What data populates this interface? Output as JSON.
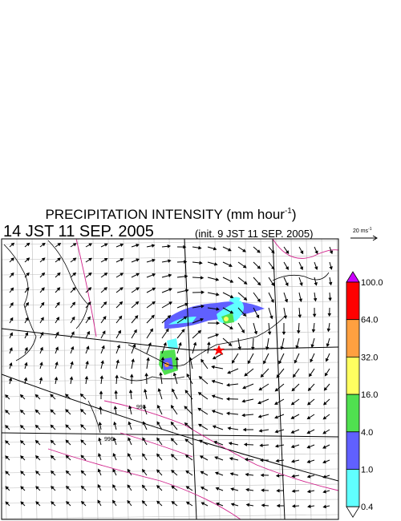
{
  "header": {
    "title": "PRECIPITATION INTENSITY (mm hour",
    "title_superscript": "-1",
    "title_end": ")",
    "time": "14 JST 11 SEP. 2005",
    "init": "(init. 9 JST 11 SEP. 2005)"
  },
  "vector_key": {
    "label": "20 ms",
    "superscript": "-1"
  },
  "colorbar": {
    "over_color": "#cc00ff",
    "under_color": "#ffffff",
    "labels": [
      "100.0",
      "64.0",
      "32.0",
      "16.0",
      "4.0",
      "1.0",
      "0.4"
    ],
    "colors": [
      "#ff0000",
      "#ffa040",
      "#ffff60",
      "#50e050",
      "#6060ff",
      "#60ffff"
    ]
  },
  "contour_labels": [
    "997",
    "996"
  ]
}
